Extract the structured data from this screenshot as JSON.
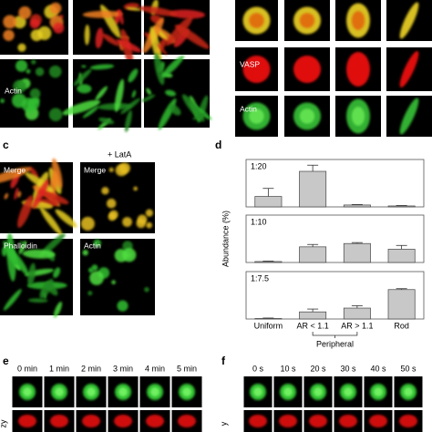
{
  "panel_labels": {
    "c": "c",
    "d": "d",
    "e": "e",
    "f": "f"
  },
  "panel_a": {
    "channels": [
      "Actin"
    ]
  },
  "panel_b": {
    "channels": [
      "VASP",
      "Actin"
    ]
  },
  "panel_c": {
    "treatment": "+ LatA",
    "left": [
      "Merge",
      "Phalloidin"
    ],
    "right": [
      "Merge",
      "Actin"
    ]
  },
  "panel_e": {
    "times": [
      "0 min",
      "1 min",
      "2 min",
      "3 min",
      "4 min",
      "5 min"
    ],
    "axis": "zy"
  },
  "panel_f": {
    "times": [
      "0 s",
      "10 s",
      "20 s",
      "30 s",
      "40 s",
      "50 s"
    ],
    "axis": "y"
  },
  "chart_data": {
    "type": "bar",
    "ylabel": "Abundance (%)",
    "color": "#c8c8c8",
    "categories": [
      "Uniform",
      "AR < 1.1",
      "AR > 1.1",
      "Rod"
    ],
    "group_label": "Peripheral",
    "ylim": [
      0,
      100
    ],
    "panels": [
      {
        "label": "1:20",
        "values": [
          22,
          75,
          4,
          2
        ],
        "errors": [
          17,
          13,
          1,
          1
        ]
      },
      {
        "label": "1:10",
        "values": [
          2,
          33,
          40,
          28
        ],
        "errors": [
          1,
          5,
          2,
          8
        ]
      },
      {
        "label": "1:7.5",
        "values": [
          1,
          15,
          23,
          62
        ],
        "errors": [
          1,
          6,
          5,
          2
        ]
      }
    ]
  }
}
